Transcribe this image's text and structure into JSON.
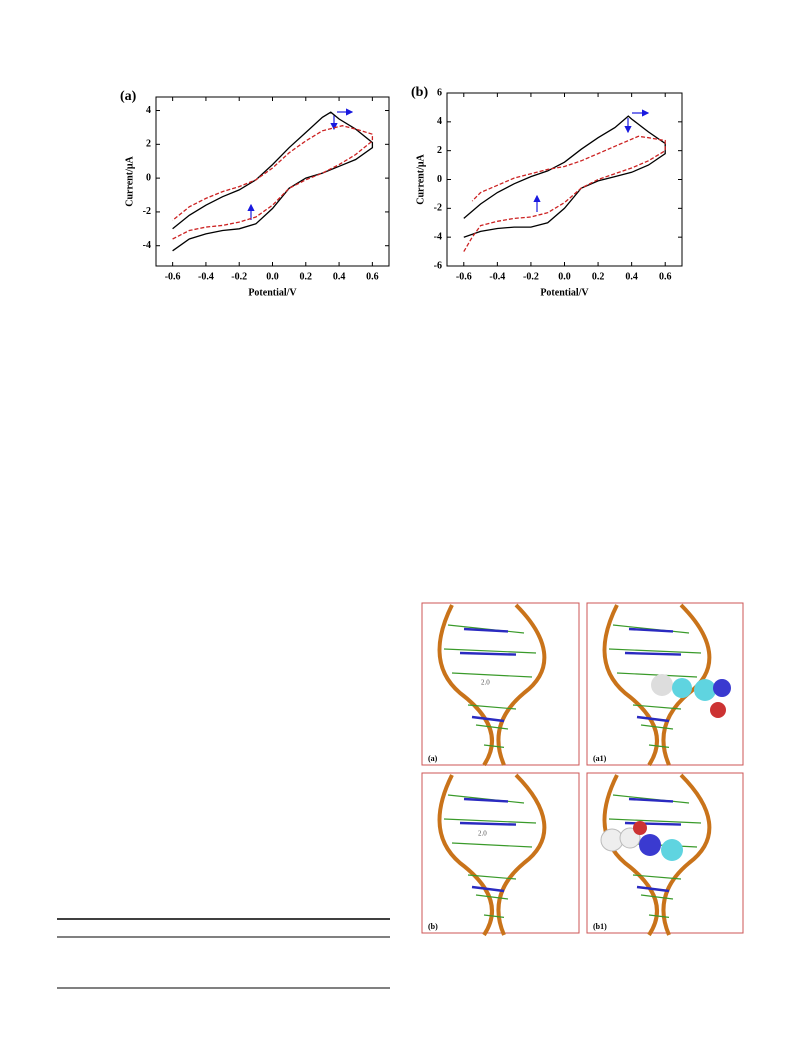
{
  "chart_data": [
    {
      "type": "line",
      "panel_label": "(a)",
      "x_label": "Potential/V",
      "y_label": "Current/μA",
      "xlim": [
        -0.7,
        0.7
      ],
      "xticks": [
        -0.6,
        -0.4,
        -0.2,
        {
          "value": 0,
          "label": "0.0"
        },
        0.2,
        0.4,
        0.6
      ],
      "ylim": [
        -5.2,
        4.8
      ],
      "yticks": [
        -4,
        -2,
        0,
        2,
        4
      ],
      "series": [
        {
          "color": "#000000",
          "dash": false,
          "x": [
            -0.6,
            -0.5,
            -0.4,
            -0.3,
            -0.2,
            -0.1,
            0,
            0.1,
            0.2,
            0.3,
            0.4,
            0.5,
            0.6,
            0.6,
            0.5,
            0.4,
            0.35,
            0.3,
            0.2,
            0.1,
            0,
            -0.1,
            -0.2,
            -0.3,
            -0.4,
            -0.5,
            -0.6
          ],
          "values": [
            -4.3,
            -3.6,
            -3.3,
            -3.1,
            -3.0,
            -2.7,
            -1.8,
            -0.6,
            0.0,
            0.3,
            0.7,
            1.1,
            1.8,
            2.1,
            2.9,
            3.5,
            3.9,
            3.6,
            2.7,
            1.8,
            0.8,
            -0.1,
            -0.7,
            -1.1,
            -1.6,
            -2.2,
            -3.0
          ]
        },
        {
          "color": "#cc2222",
          "dash": true,
          "x": [
            -0.6,
            -0.5,
            -0.4,
            -0.3,
            -0.2,
            -0.1,
            0,
            0.1,
            0.2,
            0.3,
            0.4,
            0.5,
            0.6,
            0.6,
            0.5,
            0.42,
            0.3,
            0.2,
            0.1,
            0,
            -0.1,
            -0.2,
            -0.3,
            -0.4,
            -0.5,
            -0.6
          ],
          "values": [
            -3.6,
            -3.1,
            -2.9,
            -2.8,
            -2.6,
            -2.3,
            -1.6,
            -0.6,
            -0.1,
            0.3,
            0.8,
            1.4,
            2.2,
            2.6,
            2.9,
            3.1,
            2.8,
            2.2,
            1.5,
            0.6,
            -0.1,
            -0.5,
            -0.8,
            -1.2,
            -1.7,
            -2.5
          ]
        }
      ]
    },
    {
      "type": "line",
      "panel_label": "(b)",
      "x_label": "Potential/V",
      "y_label": "Current/μA",
      "xlim": [
        -0.7,
        0.7
      ],
      "xticks": [
        -0.6,
        -0.4,
        -0.2,
        {
          "value": 0,
          "label": "0.0"
        },
        0.2,
        0.4,
        0.6
      ],
      "ylim": [
        -6,
        6
      ],
      "yticks": [
        -6,
        -4,
        -2,
        0,
        2,
        4,
        6
      ],
      "series": [
        {
          "color": "#000000",
          "dash": false,
          "x": [
            -0.6,
            -0.5,
            -0.4,
            -0.3,
            -0.2,
            -0.1,
            0,
            0.1,
            0.2,
            0.3,
            0.4,
            0.5,
            0.6,
            0.6,
            0.5,
            0.4,
            0.38,
            0.3,
            0.2,
            0.1,
            0,
            -0.1,
            -0.2,
            -0.3,
            -0.4,
            -0.5,
            -0.6
          ],
          "values": [
            -4.0,
            -3.6,
            -3.4,
            -3.3,
            -3.3,
            -3.0,
            -2.0,
            -0.6,
            -0.1,
            0.2,
            0.5,
            1.0,
            1.8,
            2.5,
            3.3,
            4.2,
            4.4,
            3.6,
            2.9,
            2.1,
            1.2,
            0.6,
            0.2,
            -0.3,
            -0.9,
            -1.7,
            -2.7
          ]
        },
        {
          "color": "#cc2222",
          "dash": true,
          "x": [
            -0.6,
            -0.55,
            -0.5,
            -0.4,
            -0.3,
            -0.2,
            -0.1,
            0,
            0.1,
            0.2,
            0.3,
            0.4,
            0.5,
            0.6,
            0.6,
            0.5,
            0.44,
            0.3,
            0.2,
            0.1,
            0,
            -0.1,
            -0.2,
            -0.3,
            -0.4,
            -0.5,
            -0.55
          ],
          "values": [
            -5.0,
            -4.0,
            -3.2,
            -2.9,
            -2.7,
            -2.6,
            -2.3,
            -1.6,
            -0.6,
            0.0,
            0.4,
            0.8,
            1.3,
            2.0,
            2.7,
            2.9,
            3.0,
            2.3,
            1.8,
            1.3,
            0.9,
            0.7,
            0.4,
            0.1,
            -0.4,
            -0.9,
            -1.5
          ]
        }
      ]
    }
  ],
  "figure": {
    "panels": [
      "(a)",
      "(a1)",
      "(b)",
      "(b1)"
    ],
    "distance_label": "2.0"
  }
}
